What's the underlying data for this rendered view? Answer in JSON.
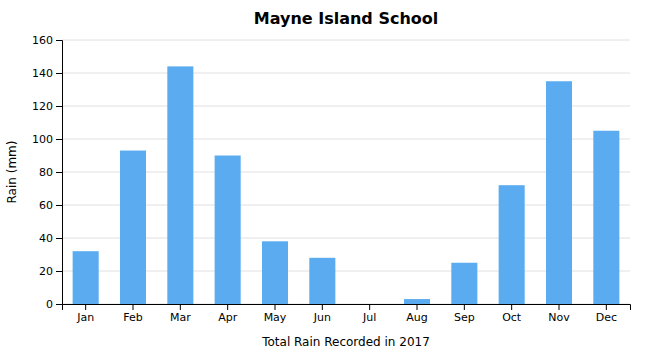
{
  "chart_data": {
    "type": "bar",
    "title": "Mayne Island School",
    "xlabel": "Total Rain Recorded in 2017",
    "ylabel": "Rain (mm)",
    "categories": [
      "Jan",
      "Feb",
      "Mar",
      "Apr",
      "May",
      "Jun",
      "Jul",
      "Aug",
      "Sep",
      "Oct",
      "Nov",
      "Dec"
    ],
    "values": [
      32,
      93,
      144,
      90,
      38,
      28,
      0,
      3,
      25,
      72,
      135,
      105
    ],
    "color": "#5aabf0",
    "ylim": [
      0,
      160
    ],
    "yticks": [
      0,
      20,
      40,
      60,
      80,
      100,
      120,
      140,
      160
    ],
    "grid": true
  }
}
